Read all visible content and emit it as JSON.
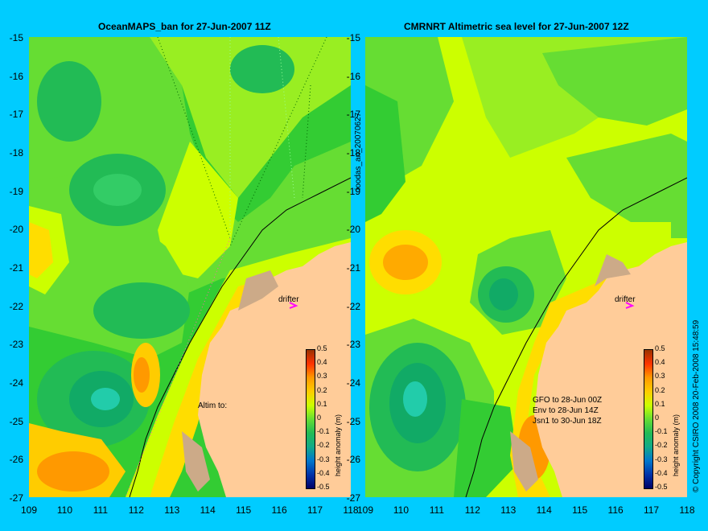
{
  "left_title": "OceanMAPS_ban for 27-Jun-2007 11Z",
  "right_title": "CMRNRT Altimetric sea level  for 27-Jun-2007 12Z",
  "y_ticks": [
    "-15",
    "-16",
    "-17",
    "-18",
    "-19",
    "-20",
    "-21",
    "-22",
    "-23",
    "-24",
    "-25",
    "-26",
    "-27"
  ],
  "x_ticks": [
    "109",
    "110",
    "111",
    "112",
    "113",
    "114",
    "115",
    "116",
    "117",
    "118"
  ],
  "left_labels": {
    "drifter": "drifter",
    "altim": "Altim to:"
  },
  "right_labels": {
    "drifter": "drifter",
    "gfo": "GFO to 28-Jun 00Z",
    "env": "Env to 28-Jun 14Z",
    "jsn": "Jsn1 to 30-Jun 18Z"
  },
  "colorbar": {
    "ticks": [
      "0.5",
      "0.4",
      "0.3",
      "0.2",
      "0.1",
      "0",
      "-0.1",
      "-0.2",
      "-0.3",
      "-0.4",
      "-0.5"
    ],
    "title": "height anomaly (m)"
  },
  "side_id": "ioodas_an_20070627",
  "copyright": "© Copyright CSIRO 2008    20-Feb-2008 15:48:59",
  "colors": {
    "land": "#ffcc99",
    "background": "#00ccff",
    "drifter": "#ff00ff"
  }
}
